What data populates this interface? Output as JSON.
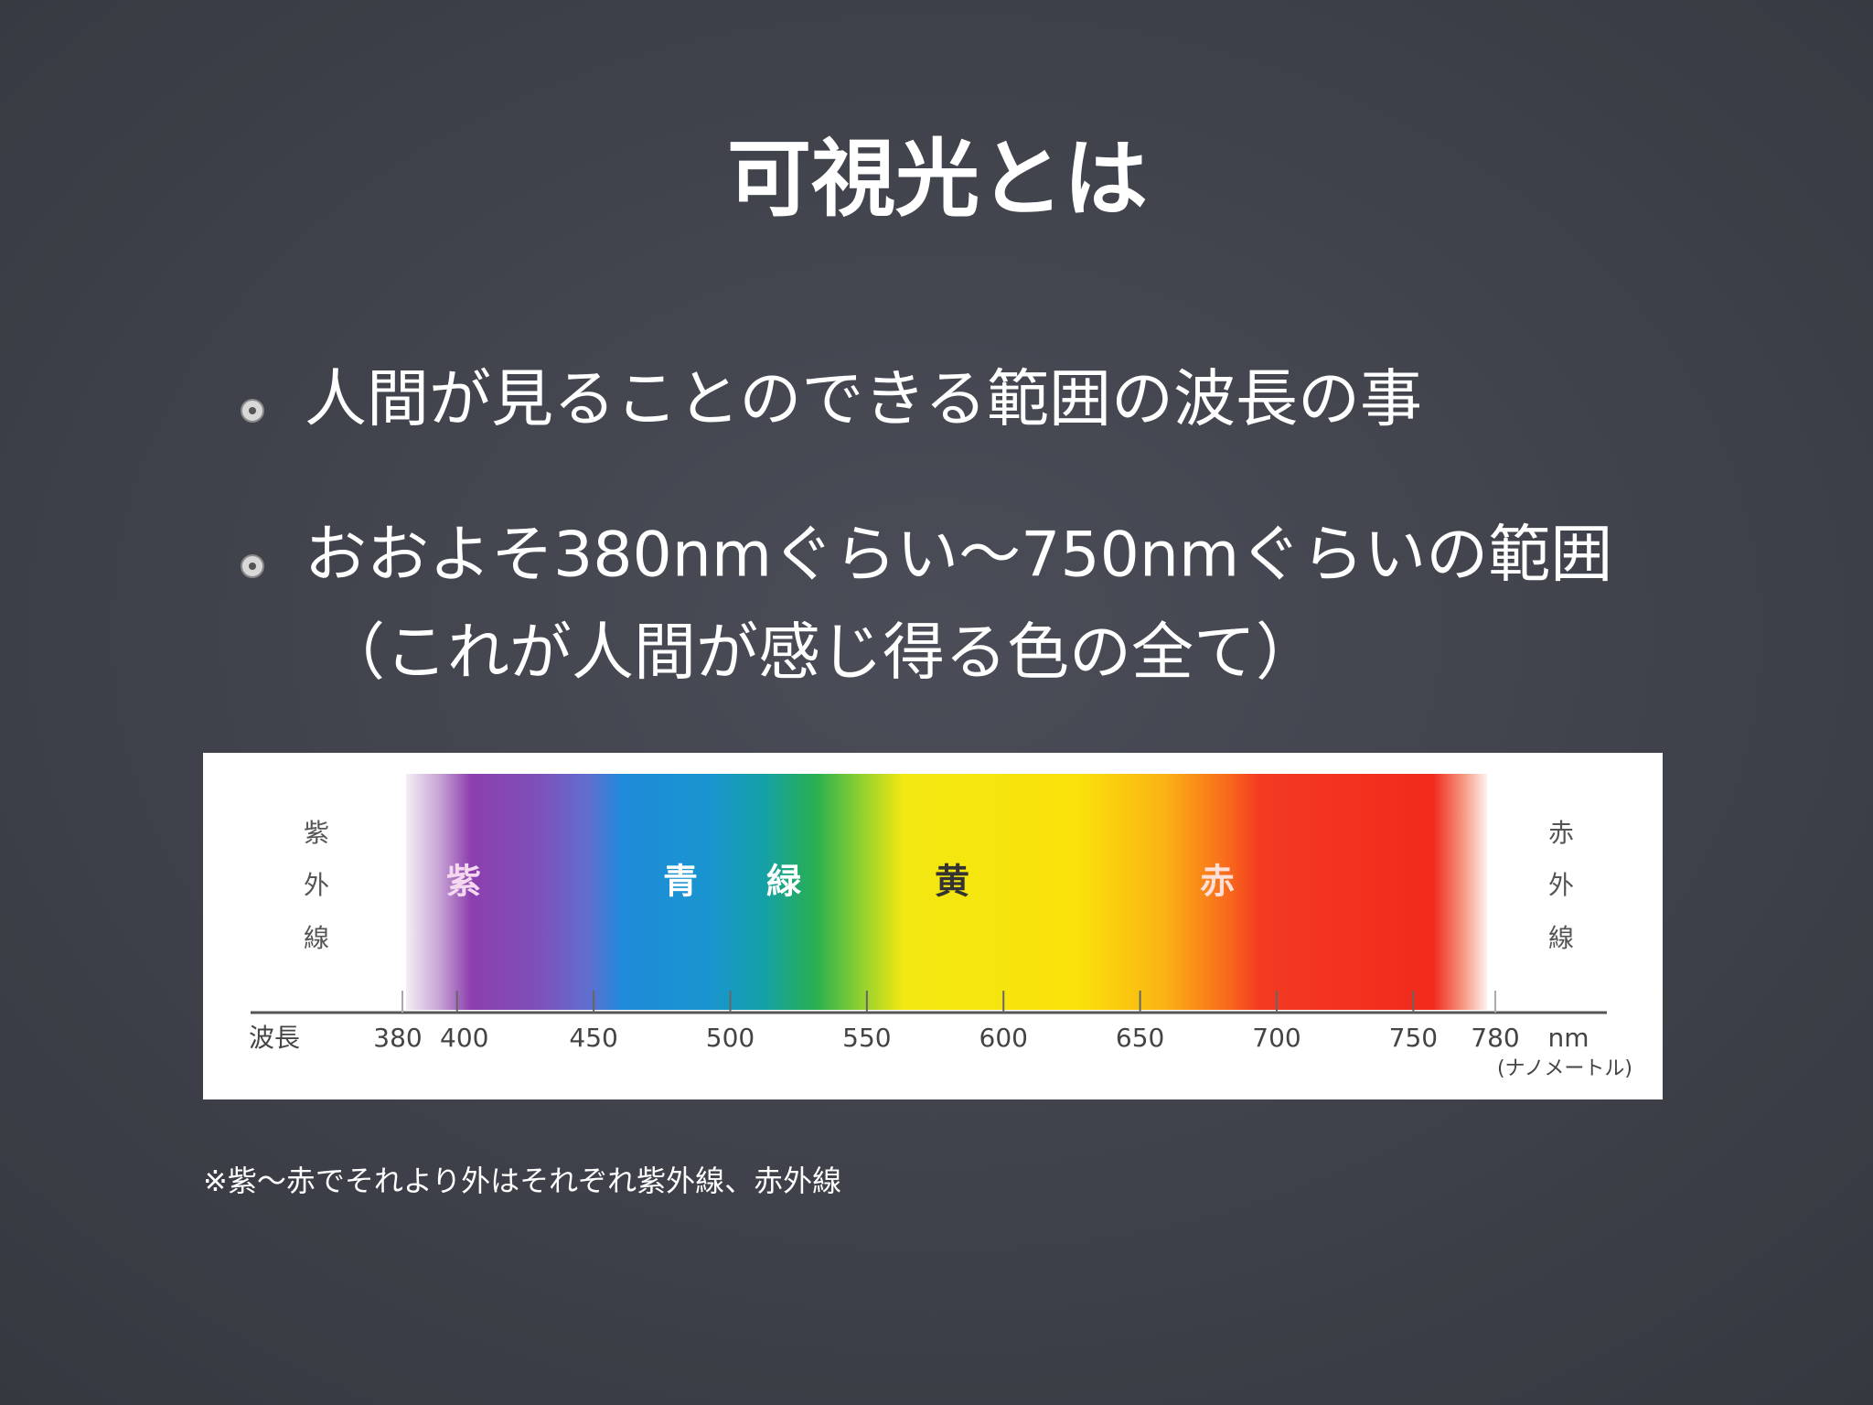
{
  "title": "可視光とは",
  "bullets": [
    {
      "lines": [
        "人間が見ることのできる範囲の波長の事"
      ]
    },
    {
      "lines": [
        "おおよそ380nmぐらい〜750nmぐらいの範囲",
        "（これが人間が感じ得る色の全て）"
      ]
    }
  ],
  "spectrum": {
    "axis_label": "波長",
    "unit": "nm",
    "unit_note": "(ナノメートル)",
    "ticks": [
      380,
      400,
      450,
      500,
      550,
      600,
      650,
      700,
      750,
      780
    ],
    "left_label": [
      "紫",
      "外",
      "線"
    ],
    "right_label": [
      "赤",
      "外",
      "線"
    ],
    "color_labels": [
      "紫",
      "青",
      "緑",
      "黄",
      "赤"
    ]
  },
  "footnote": "※紫〜赤でそれより外はそれぞれ紫外線、赤外線"
}
